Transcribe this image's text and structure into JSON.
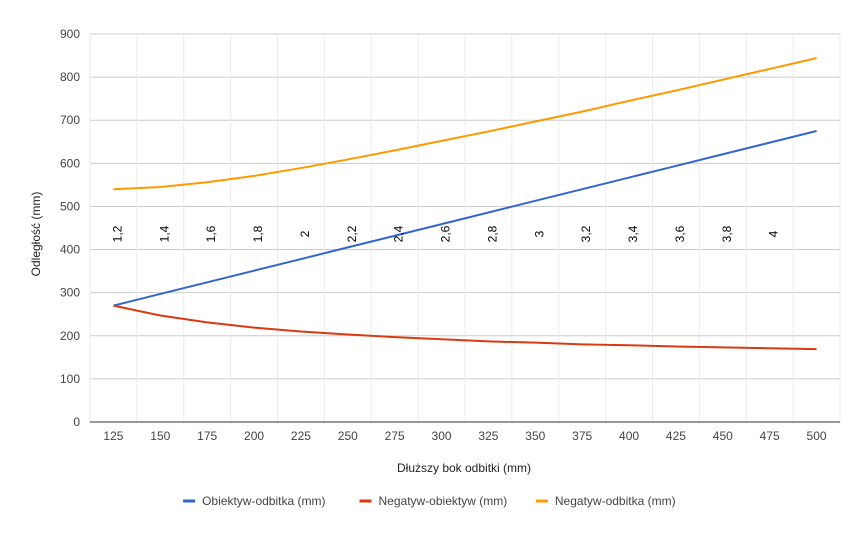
{
  "chart_data": {
    "type": "line",
    "title": "",
    "xlabel": "Dłuższy bok odbitki (mm)",
    "ylabel": "Odległość (mm)",
    "x": [
      125,
      150,
      175,
      200,
      225,
      250,
      275,
      300,
      325,
      350,
      375,
      400,
      425,
      450,
      475,
      500
    ],
    "xlim": [
      112.5,
      512.5
    ],
    "ylim": [
      0,
      900
    ],
    "yticks": [
      0,
      100,
      200,
      300,
      400,
      500,
      600,
      700,
      800,
      900
    ],
    "grid": true,
    "legend_position": "bottom",
    "series": [
      {
        "name": "Obiektyw-odbitka (mm)",
        "color": "#3366cc",
        "values": [
          270,
          297,
          324,
          351,
          378,
          405,
          432,
          459,
          486,
          513,
          540,
          567,
          594,
          621,
          648,
          675
        ]
      },
      {
        "name": "Negatyw-obiektyw (mm)",
        "color": "#dc3912",
        "values": [
          270,
          247,
          231,
          219,
          210,
          203,
          197,
          192,
          187,
          184,
          180,
          178,
          175,
          173,
          171,
          169
        ]
      },
      {
        "name": "Negatyw-odbitka (mm)",
        "color": "#ff9900",
        "values": [
          540,
          545,
          556,
          571,
          589,
          609,
          630,
          652,
          674,
          697,
          720,
          745,
          769,
          794,
          819,
          844
        ]
      }
    ],
    "annotations": {
      "y": 450,
      "labels": [
        "1,2",
        "1,4",
        "1,6",
        "1,8",
        "2",
        "2,2",
        "2,4",
        "2,6",
        "2,8",
        "3",
        "3,2",
        "3,4",
        "3,6",
        "3,8",
        "4"
      ]
    }
  }
}
